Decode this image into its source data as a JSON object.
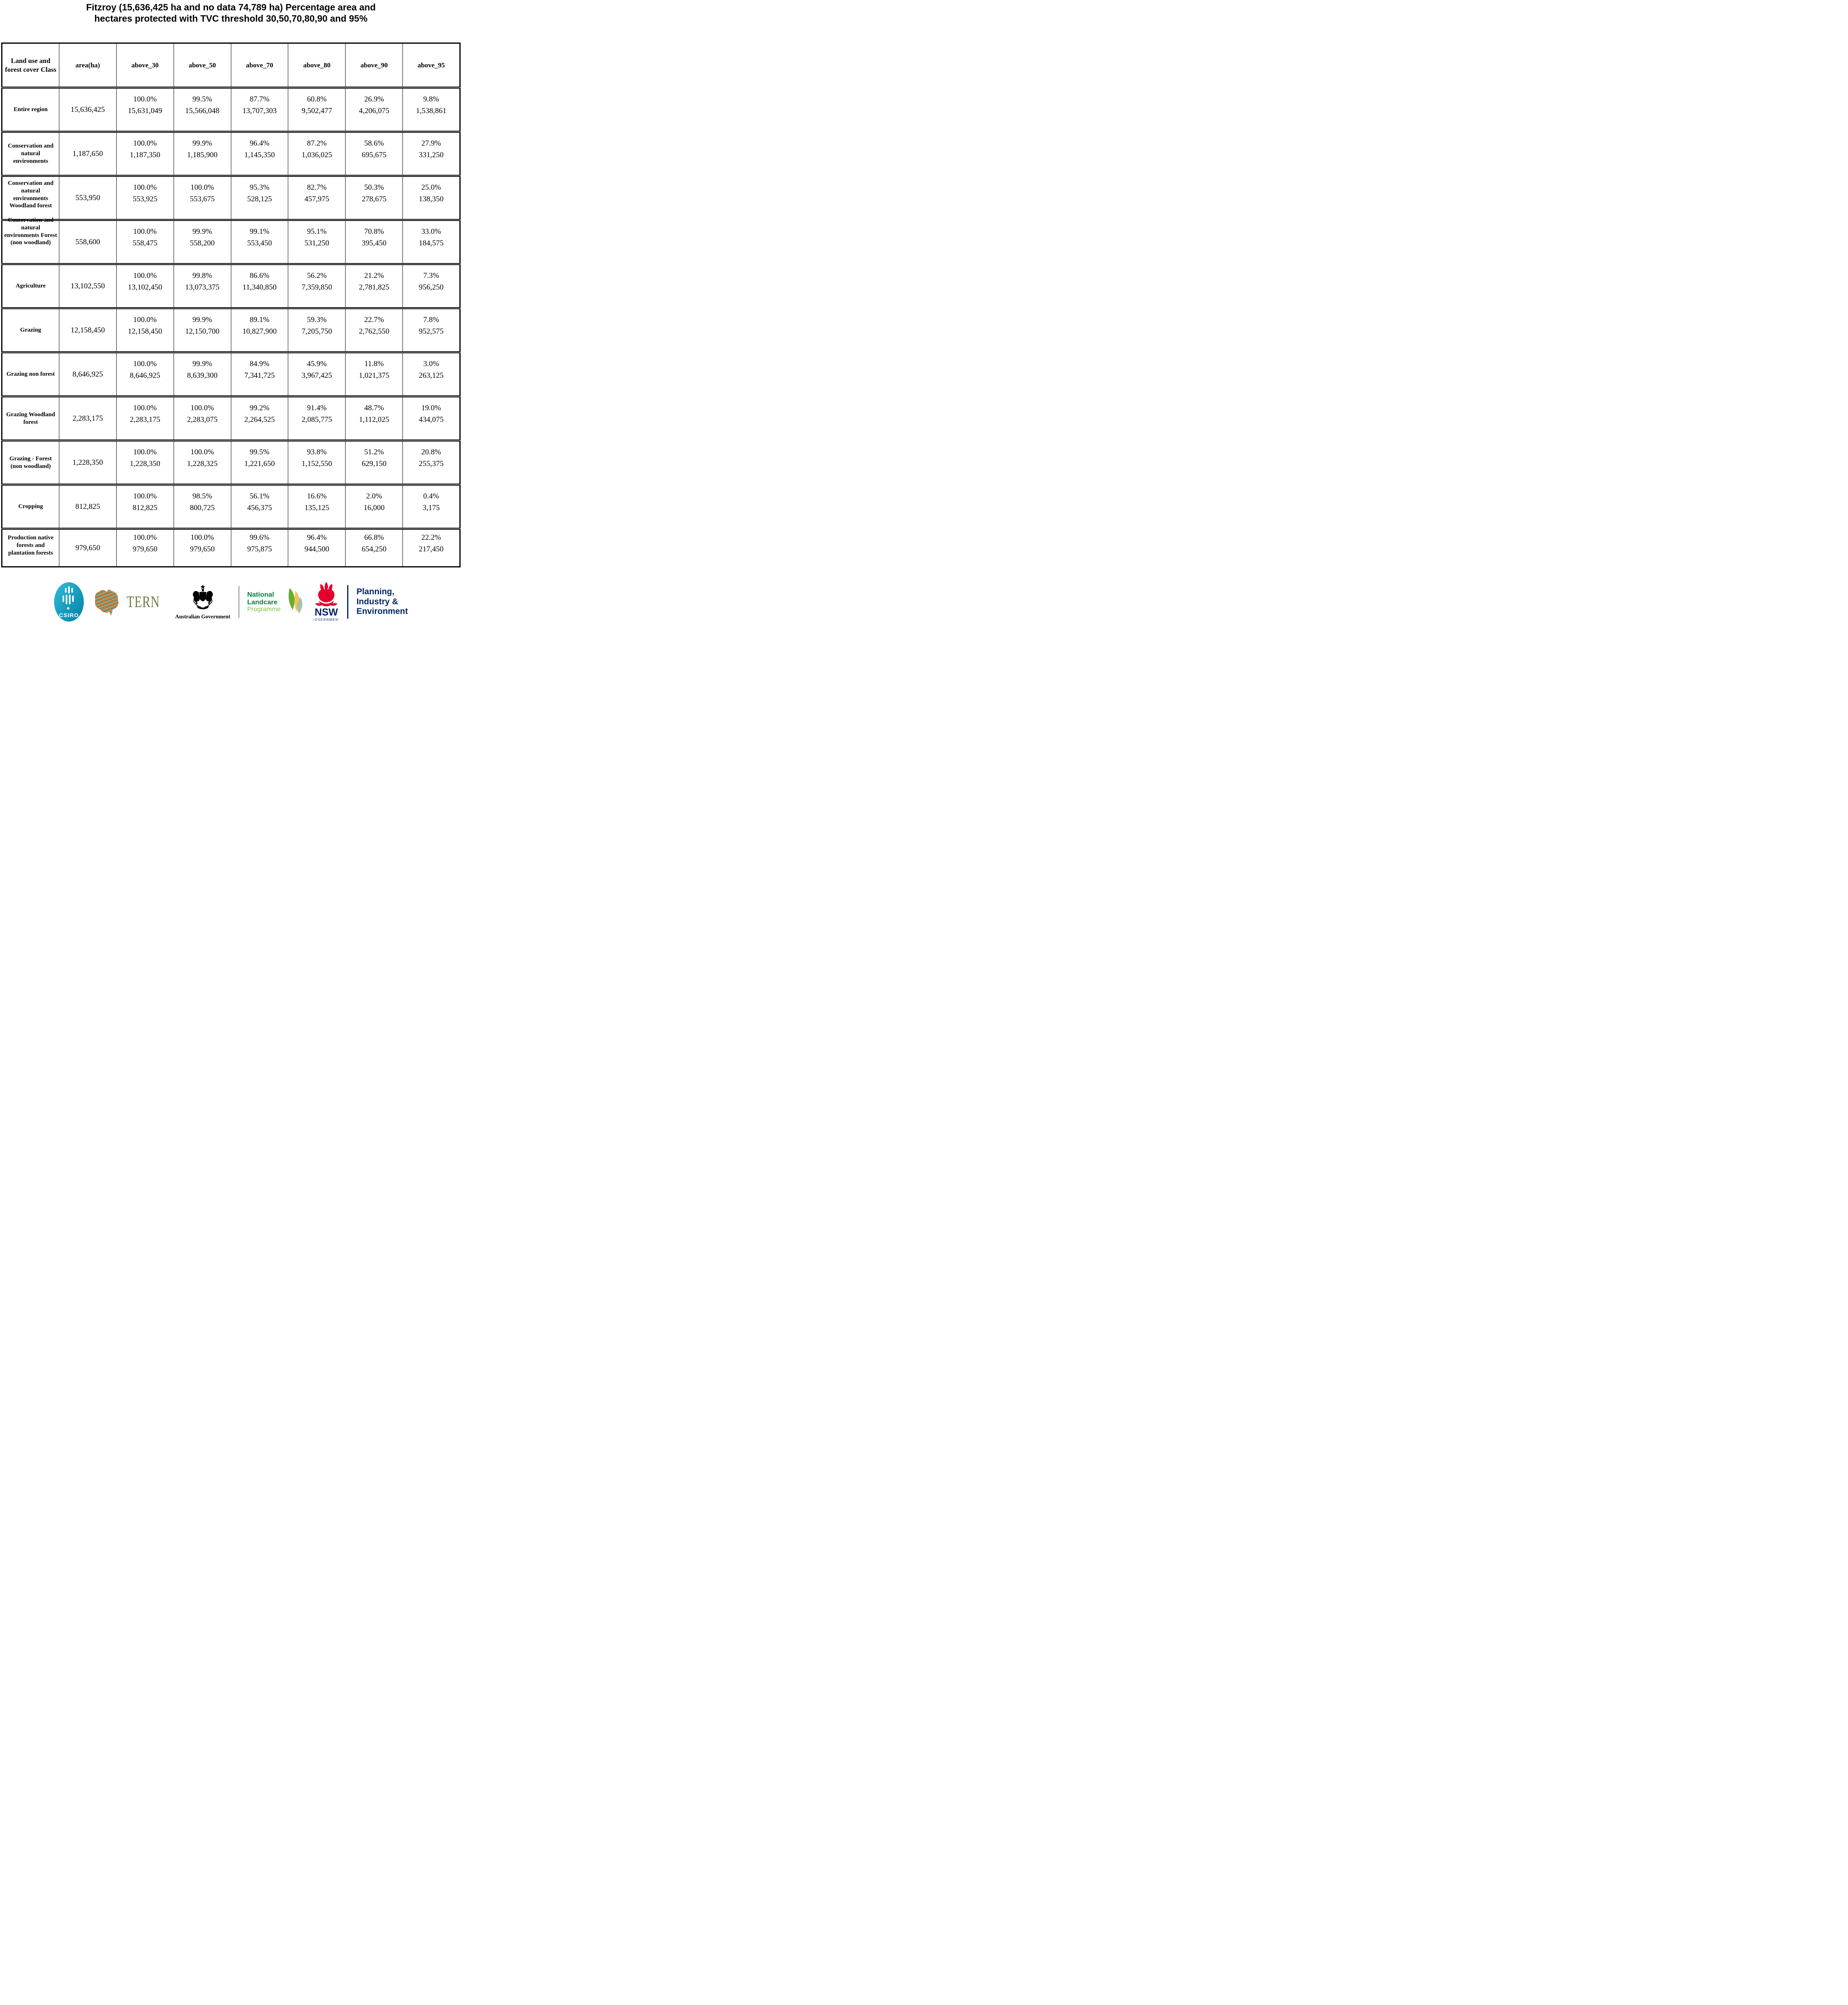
{
  "title": {
    "line1": "Fitzroy (15,636,425 ha and no data 74,789 ha) Percentage area and",
    "line2": "hectares protected with TVC threshold 30,50,70,80,90 and 95%"
  },
  "table": {
    "columns": [
      "Land use and forest cover Class",
      "area(ha)",
      "above_30",
      "above_50",
      "above_70",
      "above_80",
      "above_90",
      "above_95"
    ],
    "rows": [
      {
        "label": "Entire region",
        "area": "15,636,425",
        "metrics": [
          {
            "pct": "100.0%",
            "ha": "15,631,049"
          },
          {
            "pct": "99.5%",
            "ha": "15,566,048"
          },
          {
            "pct": "87.7%",
            "ha": "13,707,303"
          },
          {
            "pct": "60.8%",
            "ha": "9,502,477"
          },
          {
            "pct": "26.9%",
            "ha": "4,206,075"
          },
          {
            "pct": "9.8%",
            "ha": "1,538,861"
          }
        ]
      },
      {
        "label": "Conservation and natural environments",
        "area": "1,187,650",
        "metrics": [
          {
            "pct": "100.0%",
            "ha": "1,187,350"
          },
          {
            "pct": "99.9%",
            "ha": "1,185,900"
          },
          {
            "pct": "96.4%",
            "ha": "1,145,350"
          },
          {
            "pct": "87.2%",
            "ha": "1,036,025"
          },
          {
            "pct": "58.6%",
            "ha": "695,675"
          },
          {
            "pct": "27.9%",
            "ha": "331,250"
          }
        ]
      },
      {
        "label": "Conservation and natural environments Woodland forest",
        "area": "553,950",
        "metrics": [
          {
            "pct": "100.0%",
            "ha": "553,925"
          },
          {
            "pct": "100.0%",
            "ha": "553,675"
          },
          {
            "pct": "95.3%",
            "ha": "528,125"
          },
          {
            "pct": "82.7%",
            "ha": "457,975"
          },
          {
            "pct": "50.3%",
            "ha": "278,675"
          },
          {
            "pct": "25.0%",
            "ha": "138,350"
          }
        ]
      },
      {
        "label": "Conservation and natural environments Forest (non woodland)",
        "area": "558,600",
        "metrics": [
          {
            "pct": "100.0%",
            "ha": "558,475"
          },
          {
            "pct": "99.9%",
            "ha": "558,200"
          },
          {
            "pct": "99.1%",
            "ha": "553,450"
          },
          {
            "pct": "95.1%",
            "ha": "531,250"
          },
          {
            "pct": "70.8%",
            "ha": "395,450"
          },
          {
            "pct": "33.0%",
            "ha": "184,575"
          }
        ]
      },
      {
        "label": "Agriculture",
        "area": "13,102,550",
        "metrics": [
          {
            "pct": "100.0%",
            "ha": "13,102,450"
          },
          {
            "pct": "99.8%",
            "ha": "13,073,375"
          },
          {
            "pct": "86.6%",
            "ha": "11,340,850"
          },
          {
            "pct": "56.2%",
            "ha": "7,359,850"
          },
          {
            "pct": "21.2%",
            "ha": "2,781,825"
          },
          {
            "pct": "7.3%",
            "ha": "956,250"
          }
        ]
      },
      {
        "label": "Grazing",
        "area": "12,158,450",
        "metrics": [
          {
            "pct": "100.0%",
            "ha": "12,158,450"
          },
          {
            "pct": "99.9%",
            "ha": "12,150,700"
          },
          {
            "pct": "89.1%",
            "ha": "10,827,900"
          },
          {
            "pct": "59.3%",
            "ha": "7,205,750"
          },
          {
            "pct": "22.7%",
            "ha": "2,762,550"
          },
          {
            "pct": "7.8%",
            "ha": "952,575"
          }
        ]
      },
      {
        "label": "Grazing non forest",
        "area": "8,646,925",
        "metrics": [
          {
            "pct": "100.0%",
            "ha": "8,646,925"
          },
          {
            "pct": "99.9%",
            "ha": "8,639,300"
          },
          {
            "pct": "84.9%",
            "ha": "7,341,725"
          },
          {
            "pct": "45.9%",
            "ha": "3,967,425"
          },
          {
            "pct": "11.8%",
            "ha": "1,021,375"
          },
          {
            "pct": "3.0%",
            "ha": "263,125"
          }
        ]
      },
      {
        "label": "Grazing Woodland forest",
        "area": "2,283,175",
        "metrics": [
          {
            "pct": "100.0%",
            "ha": "2,283,175"
          },
          {
            "pct": "100.0%",
            "ha": "2,283,075"
          },
          {
            "pct": "99.2%",
            "ha": "2,264,525"
          },
          {
            "pct": "91.4%",
            "ha": "2,085,775"
          },
          {
            "pct": "48.7%",
            "ha": "1,112,025"
          },
          {
            "pct": "19.0%",
            "ha": "434,075"
          }
        ]
      },
      {
        "label": "Grazing - Forest (non woodland)",
        "area": "1,228,350",
        "metrics": [
          {
            "pct": "100.0%",
            "ha": "1,228,350"
          },
          {
            "pct": "100.0%",
            "ha": "1,228,325"
          },
          {
            "pct": "99.5%",
            "ha": "1,221,650"
          },
          {
            "pct": "93.8%",
            "ha": "1,152,550"
          },
          {
            "pct": "51.2%",
            "ha": "629,150"
          },
          {
            "pct": "20.8%",
            "ha": "255,375"
          }
        ]
      },
      {
        "label": "Cropping",
        "area": "812,825",
        "metrics": [
          {
            "pct": "100.0%",
            "ha": "812,825"
          },
          {
            "pct": "98.5%",
            "ha": "800,725"
          },
          {
            "pct": "56.1%",
            "ha": "456,375"
          },
          {
            "pct": "16.6%",
            "ha": "135,125"
          },
          {
            "pct": "2.0%",
            "ha": "16,000"
          },
          {
            "pct": "0.4%",
            "ha": "3,175"
          }
        ]
      },
      {
        "label": "Production native forests and plantation forests",
        "area": "979,650",
        "metrics": [
          {
            "pct": "100.0%",
            "ha": "979,650"
          },
          {
            "pct": "100.0%",
            "ha": "979,650"
          },
          {
            "pct": "99.6%",
            "ha": "975,875"
          },
          {
            "pct": "96.4%",
            "ha": "944,500"
          },
          {
            "pct": "66.8%",
            "ha": "654,250"
          },
          {
            "pct": "22.2%",
            "ha": "217,450"
          }
        ]
      }
    ]
  },
  "logos": {
    "csiro": {
      "label": "CSIRO",
      "brand_color": "#00A9CE"
    },
    "tern": {
      "label": "TERN",
      "brand_color": "#6D7C3F"
    },
    "australian_government": {
      "label": "Australian Government"
    },
    "landcare": {
      "line1": "National",
      "line2": "Landcare",
      "line3": "Programme",
      "color_dark": "#00843D",
      "color_light": "#7FC241"
    },
    "nsw": {
      "acronym": "NSW",
      "caption": "GOVERNMENT",
      "red": "#E4002B",
      "navy": "#002664"
    },
    "planning": {
      "line1": "Planning,",
      "line2": "Industry &",
      "line3": "Environment",
      "navy": "#002664"
    }
  }
}
